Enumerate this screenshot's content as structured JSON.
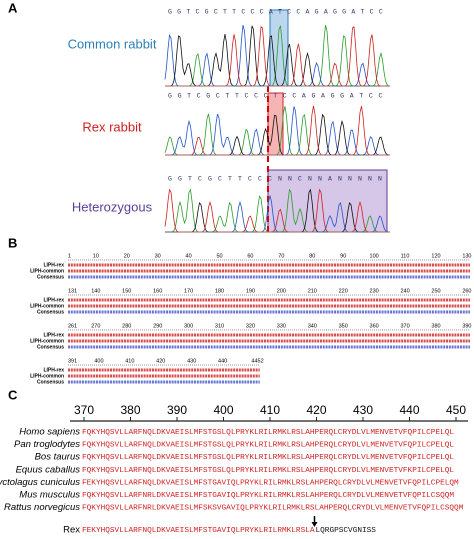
{
  "panel_a": {
    "label": "A",
    "rows": [
      {
        "name": "Common rabbit",
        "bases": "GGTCGCTTCCCATCCAGAGGATCC"
      },
      {
        "name": "Rex rabbit",
        "bases": "GGTCGCTTCCCTCCAGAGGATCC"
      },
      {
        "name": "Heterozygous",
        "bases": "GGTCGCTTCCCNNCNNANNNNN"
      }
    ]
  },
  "panel_b": {
    "label": "B",
    "blocks": [
      {
        "ruler": [
          1,
          10,
          20,
          30,
          40,
          50,
          60,
          70,
          80,
          90,
          100,
          110,
          120,
          130
        ],
        "row_labels": [
          "LIPH-rex",
          "LIPH-common",
          "Consensus"
        ]
      },
      {
        "ruler": [
          131,
          140,
          150,
          160,
          170,
          180,
          190,
          200,
          210,
          220,
          230,
          240,
          250,
          260
        ],
        "row_labels": [
          "LIPH-rex",
          "LIPH-common",
          "Consensus"
        ]
      },
      {
        "ruler": [
          261,
          270,
          280,
          290,
          300,
          310,
          320,
          330,
          340,
          350,
          360,
          370,
          380,
          390
        ],
        "row_labels": [
          "LIPH-rex",
          "LIPH-common",
          "Consensus"
        ]
      },
      {
        "ruler": [
          391,
          400,
          410,
          420,
          430,
          440,
          4452
        ],
        "row_labels": [
          "LIPH-rex",
          "LIPH-common",
          "Consensus"
        ]
      }
    ]
  },
  "panel_c": {
    "label": "C",
    "ruler": [
      370,
      380,
      390,
      400,
      410,
      420,
      430,
      440,
      450
    ],
    "rows": [
      {
        "species": "Homo sapiens",
        "sequence": "FQKYHQSVLLARFNQLDKVAEISLMFSTGSLQLPRYKLRILRMKLRSLAHPERQLCRYDLVLMENVETVFQPILCPELQL"
      },
      {
        "species": "Pan troglodytes",
        "sequence": "FQKYHQSVLLARFNQLDKVAEISLMFSTGSLQLPRYKLRILRMKLRSLAHPERQLCRYDLVLMENVETVFQPILCPELQL"
      },
      {
        "species": "Bos taurus",
        "sequence": "FQKYHQSVLLARFNQLDKVAEISLMFSTGSLQLPRYKLRILRMKLRSLAHPERQLCRYDLVLMENVETVFQPILCPELQL"
      },
      {
        "species": "Equus caballus",
        "sequence": "FQKYHQSVLLARFNQLDKVAEISLMFSTGSLQLPRYKLRILRMKLRSLAHPERQLCRYDLVLMENVETVFKPILCPELQL"
      },
      {
        "species": "Oryctolagus cuniculus",
        "sequence": "FEKYHQSVLLARFNQLDKVAEISLMFSTGAVIQLPRYKLRILRMKLRSLAHPERQLCRYDLVLMENVETVFQPILCPELQM"
      },
      {
        "species": "Mus musculus",
        "sequence": "FQKYHQSVLLARFNRLDKVAEISLMFSTGAVIQLPRYKLRILRMKLRSLAHPERQLCRYDLVLMENVETVFQPILCSQQM"
      },
      {
        "species": "Rattus norvegicus",
        "sequence": "FQKYHQSVLLARFNRLDKVAEISLMFSKSVGAVIQLPRYKLRILRMKLRSLAHPERQLCRYDLVLMENVETVFQPILCSQQM"
      }
    ],
    "rex": {
      "name": "Rex",
      "sequence": "FEKYHQSVLLARFNQLDKVAEISLMFSTGAVIQLPRYKLRILRMKLRSLA",
      "tail": "LQRGPSCVGNISS"
    }
  }
}
